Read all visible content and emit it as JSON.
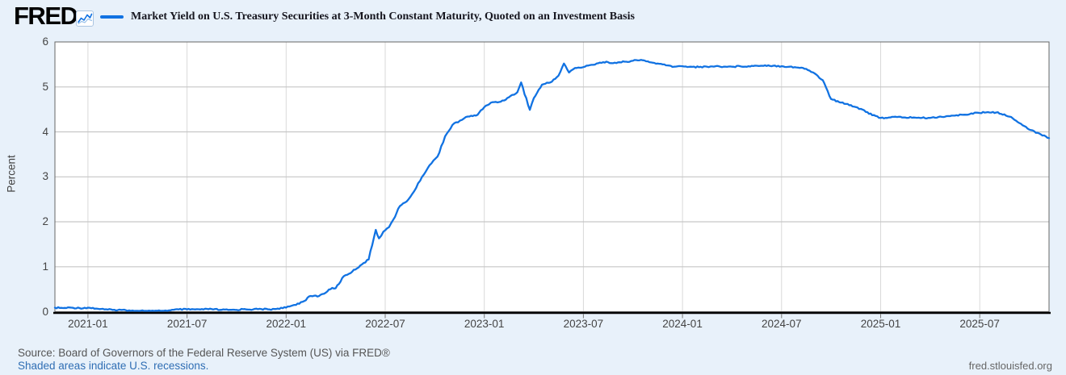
{
  "header": {
    "logo": "FRED",
    "logo_mark": "®",
    "series_legend": "Market Yield on U.S. Treasury Securities at 3-Month Constant Maturity, Quoted on an Investment Basis"
  },
  "footer": {
    "source": "Source: Board of Governors of the Federal Reserve System (US) via FRED®",
    "note_link": "Shaded areas indicate U.S. recessions.",
    "site_url": "fred.stlouisfed.org"
  },
  "colors": {
    "background": "#e8f1fa",
    "plot_background": "#ffffff",
    "line": "#1172e2",
    "legend_dash": "#1172e2",
    "grid_horizontal": "#c6c6c6",
    "grid_vertical": "#d9d9d9",
    "plot_border": "#666666",
    "axis_line": "#000000",
    "tick_mark": "#777777",
    "tick_label": "#444444",
    "link": "#2f6eb4"
  },
  "chart_data": {
    "type": "line",
    "title": "Market Yield on U.S. Treasury Securities at 3-Month Constant Maturity, Quoted on an Investment Basis",
    "ylabel": "Percent",
    "ylim": [
      0,
      6
    ],
    "y_ticks": [
      0,
      1,
      2,
      3,
      4,
      5,
      6
    ],
    "x_tick_labels": [
      "2021-01",
      "2021-07",
      "2022-01",
      "2022-07",
      "2023-01",
      "2023-07",
      "2024-01",
      "2024-07",
      "2025-01",
      "2025-07"
    ],
    "x_start": "2020-11-01",
    "x_end": "2025-11-07",
    "grid": true,
    "legend_position": "top",
    "series": [
      {
        "name": "Market Yield on U.S. Treasury Securities at 3-Month Constant Maturity, Quoted on an Investment Basis",
        "color": "#1172e2",
        "points": [
          [
            "2020-11-01",
            0.09
          ],
          [
            "2020-11-16",
            0.08
          ],
          [
            "2020-12-01",
            0.09
          ],
          [
            "2020-12-16",
            0.08
          ],
          [
            "2021-01-01",
            0.09
          ],
          [
            "2021-01-16",
            0.07
          ],
          [
            "2021-02-01",
            0.05
          ],
          [
            "2021-02-16",
            0.04
          ],
          [
            "2021-03-01",
            0.04
          ],
          [
            "2021-03-16",
            0.03
          ],
          [
            "2021-04-01",
            0.02
          ],
          [
            "2021-04-16",
            0.02
          ],
          [
            "2021-05-01",
            0.01
          ],
          [
            "2021-05-16",
            0.02
          ],
          [
            "2021-06-01",
            0.03
          ],
          [
            "2021-06-16",
            0.05
          ],
          [
            "2021-07-01",
            0.05
          ],
          [
            "2021-07-16",
            0.05
          ],
          [
            "2021-08-01",
            0.05
          ],
          [
            "2021-08-16",
            0.06
          ],
          [
            "2021-09-01",
            0.04
          ],
          [
            "2021-09-16",
            0.04
          ],
          [
            "2021-10-01",
            0.04
          ],
          [
            "2021-10-16",
            0.06
          ],
          [
            "2021-11-01",
            0.05
          ],
          [
            "2021-11-16",
            0.06
          ],
          [
            "2021-12-01",
            0.05
          ],
          [
            "2021-12-16",
            0.07
          ],
          [
            "2022-01-01",
            0.09
          ],
          [
            "2022-01-16",
            0.15
          ],
          [
            "2022-02-01",
            0.22
          ],
          [
            "2022-02-16",
            0.35
          ],
          [
            "2022-03-01",
            0.35
          ],
          [
            "2022-03-16",
            0.45
          ],
          [
            "2022-03-25",
            0.53
          ],
          [
            "2022-04-01",
            0.52
          ],
          [
            "2022-04-16",
            0.79
          ],
          [
            "2022-05-01",
            0.89
          ],
          [
            "2022-05-16",
            1.03
          ],
          [
            "2022-06-01",
            1.16
          ],
          [
            "2022-06-14",
            1.82
          ],
          [
            "2022-06-20",
            1.63
          ],
          [
            "2022-06-28",
            1.78
          ],
          [
            "2022-07-08",
            1.88
          ],
          [
            "2022-07-16",
            2.05
          ],
          [
            "2022-07-28",
            2.35
          ],
          [
            "2022-08-10",
            2.45
          ],
          [
            "2022-08-24",
            2.68
          ],
          [
            "2022-09-08",
            3.0
          ],
          [
            "2022-09-22",
            3.26
          ],
          [
            "2022-10-06",
            3.45
          ],
          [
            "2022-10-20",
            3.9
          ],
          [
            "2022-11-03",
            4.15
          ],
          [
            "2022-11-17",
            4.25
          ],
          [
            "2022-12-01",
            4.34
          ],
          [
            "2022-12-16",
            4.36
          ],
          [
            "2023-01-01",
            4.55
          ],
          [
            "2023-01-16",
            4.66
          ],
          [
            "2023-02-01",
            4.67
          ],
          [
            "2023-02-16",
            4.77
          ],
          [
            "2023-03-01",
            4.88
          ],
          [
            "2023-03-08",
            5.1
          ],
          [
            "2023-03-24",
            4.49
          ],
          [
            "2023-04-01",
            4.75
          ],
          [
            "2023-04-16",
            5.05
          ],
          [
            "2023-05-01",
            5.1
          ],
          [
            "2023-05-16",
            5.25
          ],
          [
            "2023-05-26",
            5.52
          ],
          [
            "2023-06-05",
            5.32
          ],
          [
            "2023-06-16",
            5.42
          ],
          [
            "2023-07-01",
            5.44
          ],
          [
            "2023-07-16",
            5.49
          ],
          [
            "2023-08-01",
            5.54
          ],
          [
            "2023-08-16",
            5.55
          ],
          [
            "2023-09-01",
            5.53
          ],
          [
            "2023-09-16",
            5.56
          ],
          [
            "2023-10-01",
            5.58
          ],
          [
            "2023-10-16",
            5.6
          ],
          [
            "2023-11-01",
            5.55
          ],
          [
            "2023-11-16",
            5.52
          ],
          [
            "2023-12-01",
            5.48
          ],
          [
            "2023-12-16",
            5.45
          ],
          [
            "2024-01-01",
            5.46
          ],
          [
            "2024-01-16",
            5.45
          ],
          [
            "2024-02-01",
            5.44
          ],
          [
            "2024-02-16",
            5.45
          ],
          [
            "2024-03-01",
            5.46
          ],
          [
            "2024-03-16",
            5.45
          ],
          [
            "2024-04-01",
            5.45
          ],
          [
            "2024-04-16",
            5.46
          ],
          [
            "2024-05-01",
            5.46
          ],
          [
            "2024-05-16",
            5.47
          ],
          [
            "2024-06-01",
            5.48
          ],
          [
            "2024-06-16",
            5.47
          ],
          [
            "2024-07-01",
            5.46
          ],
          [
            "2024-07-16",
            5.45
          ],
          [
            "2024-08-01",
            5.43
          ],
          [
            "2024-08-16",
            5.4
          ],
          [
            "2024-09-01",
            5.3
          ],
          [
            "2024-09-16",
            5.15
          ],
          [
            "2024-10-01",
            4.73
          ],
          [
            "2024-10-16",
            4.66
          ],
          [
            "2024-11-01",
            4.62
          ],
          [
            "2024-11-16",
            4.55
          ],
          [
            "2024-12-01",
            4.48
          ],
          [
            "2024-12-16",
            4.37
          ],
          [
            "2025-01-01",
            4.31
          ],
          [
            "2025-01-16",
            4.32
          ],
          [
            "2025-02-01",
            4.33
          ],
          [
            "2025-02-16",
            4.32
          ],
          [
            "2025-03-01",
            4.32
          ],
          [
            "2025-03-16",
            4.31
          ],
          [
            "2025-04-01",
            4.31
          ],
          [
            "2025-04-16",
            4.33
          ],
          [
            "2025-05-01",
            4.35
          ],
          [
            "2025-05-16",
            4.36
          ],
          [
            "2025-06-01",
            4.38
          ],
          [
            "2025-06-16",
            4.41
          ],
          [
            "2025-07-01",
            4.42
          ],
          [
            "2025-07-16",
            4.44
          ],
          [
            "2025-08-01",
            4.43
          ],
          [
            "2025-08-16",
            4.39
          ],
          [
            "2025-09-01",
            4.3
          ],
          [
            "2025-09-16",
            4.18
          ],
          [
            "2025-10-01",
            4.05
          ],
          [
            "2025-10-16",
            3.98
          ],
          [
            "2025-11-01",
            3.9
          ],
          [
            "2025-11-07",
            3.86
          ]
        ]
      }
    ]
  }
}
